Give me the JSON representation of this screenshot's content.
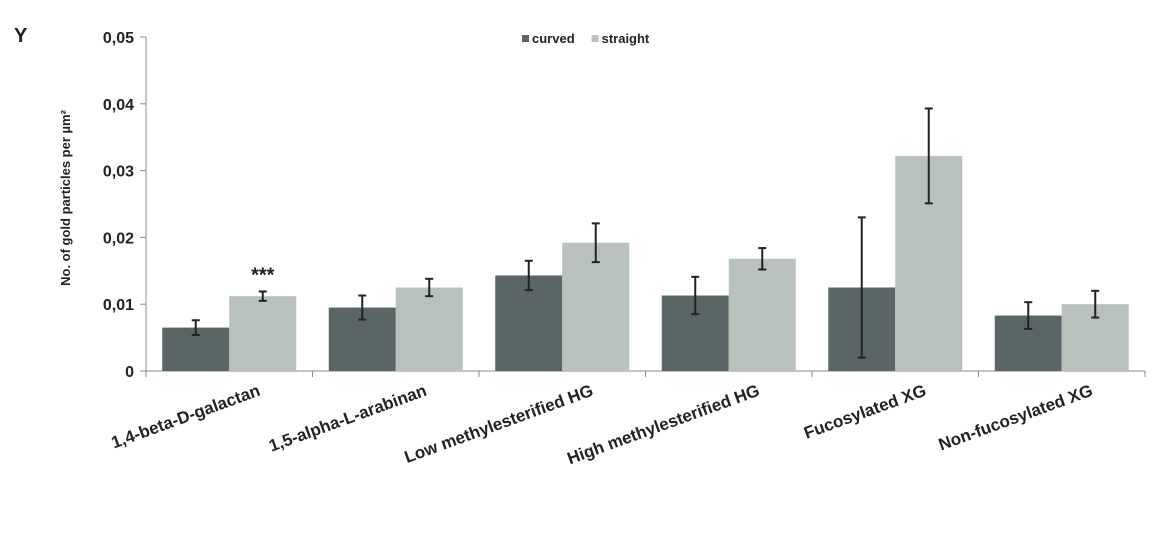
{
  "chart_data": {
    "type": "bar",
    "panel_label": "Y",
    "title": "",
    "xlabel": "",
    "ylabel": "No. of gold particles per µm²",
    "ylim": [
      0,
      0.05
    ],
    "yticks": [
      0,
      0.01,
      0.02,
      0.03,
      0.04,
      0.05
    ],
    "ytick_labels": [
      "0",
      "0,01",
      "0,02",
      "0,03",
      "0,04",
      "0,05"
    ],
    "categories": [
      "1,4-beta-D-galactan",
      "1,5-alpha-L-arabinan",
      "Low methylesterified HG",
      "High methylesterified HG",
      "Fucosylated XG",
      "Non-fucosylated XG"
    ],
    "series": [
      {
        "name": "curved",
        "color": "#5a6566",
        "values": [
          0.0065,
          0.0095,
          0.0143,
          0.0113,
          0.0125,
          0.0083
        ],
        "errors": [
          0.0011,
          0.0018,
          0.0022,
          0.0028,
          0.0105,
          0.002
        ]
      },
      {
        "name": "straight",
        "color": "#b9c1bd",
        "values": [
          0.0112,
          0.0125,
          0.0192,
          0.0168,
          0.0322,
          0.01
        ],
        "errors": [
          0.0007,
          0.0013,
          0.0029,
          0.0016,
          0.0071,
          0.002
        ]
      }
    ],
    "annotations": [
      {
        "text": "***",
        "category": 0,
        "series": 1
      }
    ],
    "legend": "top-center",
    "grid": false
  }
}
